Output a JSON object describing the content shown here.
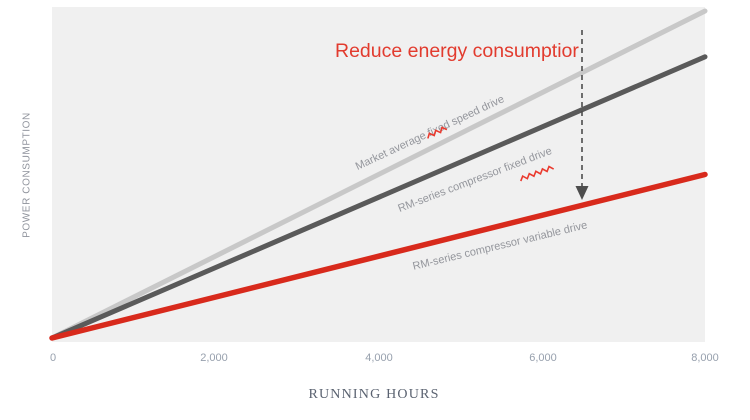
{
  "colors": {
    "plot_bg": "#f0f0f0",
    "annotation_red": "#e23b2e",
    "squiggle_red": "#ea3a2e",
    "arrow_gray": "#4d4d4d",
    "series_label_gray": "#94969c",
    "tick_label_gray": "#97a0ad",
    "axis_title_gray": "#5a6270",
    "y_label_gray": "#8f939c"
  },
  "chart_data": {
    "type": "line",
    "title": "",
    "xlabel": "RUNNING HOURS",
    "ylabel": "POWER CONSUMPTION",
    "x_ticks": [
      "0",
      "2,000",
      "4,000",
      "6,000",
      "8,000"
    ],
    "x_range": [
      0,
      8000
    ],
    "y_axis_labeled": false,
    "y_units": "relative power consumption (unlabeled axis, 0-1 of plot height)",
    "grid": "off",
    "legend": "inline rotated labels along each line",
    "annotation": "Reduce energy consumptior",
    "annotation_arrow": "dashed vertical arrow pointing down from annotation to the variable-drive line",
    "series": [
      {
        "name": "Market average fixed speed drive",
        "color": "#c8c8c8",
        "stroke_width": 5,
        "x": [
          0,
          8000
        ],
        "y_relative": [
          0,
          1.0
        ]
      },
      {
        "name": "RM-series compressor fixed drive",
        "color": "#5a5a5a",
        "stroke_width": 5,
        "x": [
          0,
          8000
        ],
        "y_relative": [
          0,
          0.86
        ]
      },
      {
        "name": "RM-series compressor variable drive",
        "color": "#d82a1c",
        "stroke_width": 5.5,
        "x": [
          0,
          8000
        ],
        "y_relative": [
          0,
          0.5
        ]
      }
    ]
  }
}
